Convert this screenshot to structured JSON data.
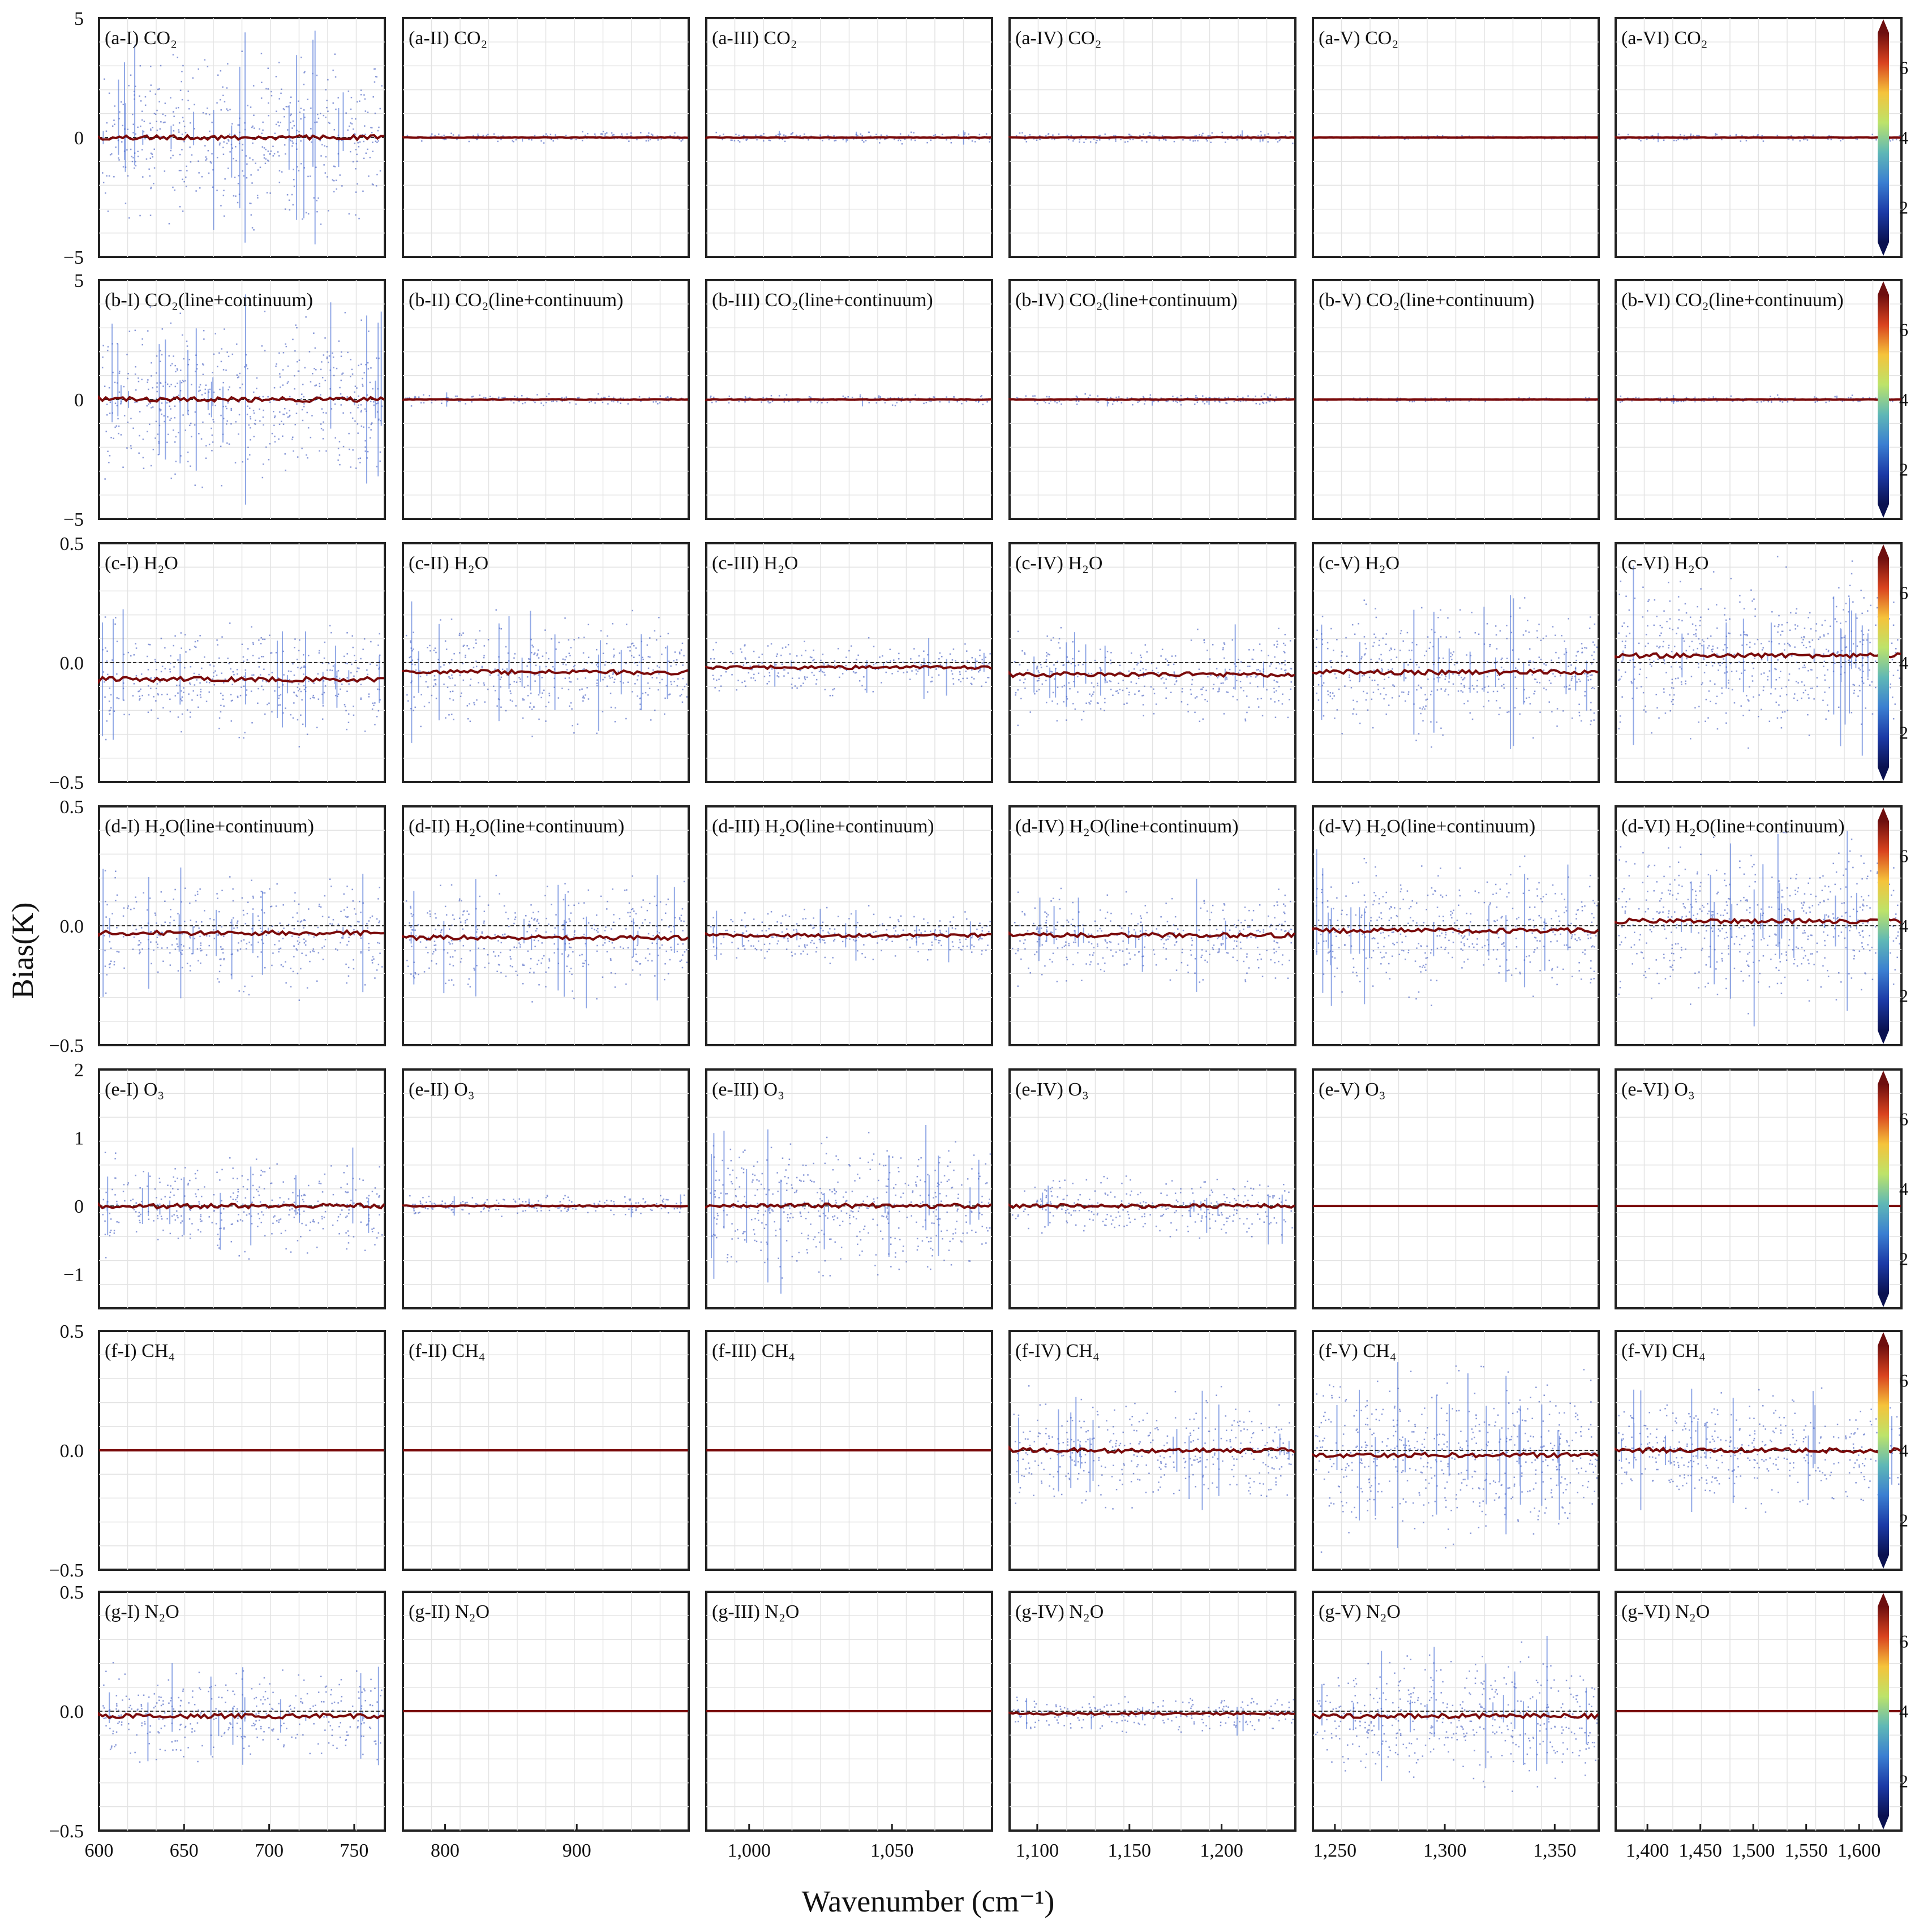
{
  "figure": {
    "ylabel": "Bias(K)",
    "xlabel": "Wavenumber (cm⁻¹)",
    "colorbar_ticks": [
      "2",
      "4",
      "6"
    ]
  },
  "chart_data": {
    "type": "scatter",
    "columns": [
      {
        "id": "I",
        "xlim": [
          600,
          768
        ],
        "ticks": [
          600,
          650,
          700,
          750
        ],
        "tick_labels": [
          "600",
          "650",
          "700",
          "750"
        ]
      },
      {
        "id": "II",
        "xlim": [
          768,
          985
        ],
        "ticks": [
          800,
          900
        ],
        "tick_labels": [
          "800",
          "900"
        ]
      },
      {
        "id": "III",
        "xlim": [
          985,
          1085
        ],
        "ticks": [
          1000,
          1050
        ],
        "tick_labels": [
          "1,000",
          "1,050"
        ]
      },
      {
        "id": "IV",
        "xlim": [
          1085,
          1240
        ],
        "ticks": [
          1100,
          1150,
          1200
        ],
        "tick_labels": [
          "1,100",
          "1,150",
          "1,200"
        ]
      },
      {
        "id": "V",
        "xlim": [
          1240,
          1370
        ],
        "ticks": [
          1250,
          1300,
          1350
        ],
        "tick_labels": [
          "1,250",
          "1,300",
          "1,350"
        ]
      },
      {
        "id": "VI",
        "xlim": [
          1370,
          1640
        ],
        "ticks": [
          1400,
          1450,
          1500,
          1550,
          1600
        ],
        "tick_labels": [
          "1,400",
          "1,450",
          "1,500",
          "1,550",
          "1,600"
        ]
      }
    ],
    "rows": [
      {
        "id": "a",
        "gas": "CO₂",
        "suffix": "",
        "ylim": [
          -5,
          5
        ],
        "yticks": [
          "5",
          "0",
          "−5"
        ],
        "scatter_extent": [
          4.5,
          0.3,
          0.3,
          0.3,
          0.1,
          0.2
        ],
        "bias_line": [
          0,
          0,
          0,
          0,
          0,
          0
        ]
      },
      {
        "id": "b",
        "gas": "CO₂",
        "suffix": "(line+continuum)",
        "ylim": [
          -5,
          5
        ],
        "yticks": [
          "5",
          "0",
          "−5"
        ],
        "scatter_extent": [
          4.5,
          0.3,
          0.3,
          0.3,
          0.1,
          0.2
        ],
        "bias_line": [
          0,
          0,
          0,
          0,
          0,
          0
        ]
      },
      {
        "id": "c",
        "gas": "H₂O",
        "suffix": "",
        "ylim": [
          -0.5,
          0.5
        ],
        "yticks": [
          "0.5",
          "0.0",
          "−0.5"
        ],
        "scatter_extent": [
          0.3,
          0.3,
          0.15,
          0.25,
          0.35,
          0.45
        ],
        "bias_line": [
          -0.07,
          -0.04,
          -0.02,
          -0.05,
          -0.04,
          0.03
        ]
      },
      {
        "id": "d",
        "gas": "H₂O",
        "suffix": "(line+continuum)",
        "ylim": [
          -0.5,
          0.5
        ],
        "yticks": [
          "0.5",
          "0.0",
          "−0.5"
        ],
        "scatter_extent": [
          0.3,
          0.3,
          0.15,
          0.25,
          0.35,
          0.45
        ],
        "bias_line": [
          -0.03,
          -0.05,
          -0.04,
          -0.04,
          -0.02,
          0.02
        ]
      },
      {
        "id": "e",
        "gas": "O₃",
        "suffix": "",
        "ylim": [
          -1.5,
          2
        ],
        "yticks": [
          "2",
          "1",
          "0",
          "−1"
        ],
        "scatter_extent": [
          0.9,
          0.2,
          1.3,
          0.6,
          0,
          0
        ],
        "bias_line": [
          0,
          0,
          0,
          0,
          0,
          0
        ]
      },
      {
        "id": "f",
        "gas": "CH₄",
        "suffix": "",
        "ylim": [
          -0.5,
          0.5
        ],
        "yticks": [
          "0.5",
          "0.0",
          "−0.5"
        ],
        "scatter_extent": [
          0,
          0,
          0,
          0.3,
          0.45,
          0.3
        ],
        "bias_line": [
          0,
          0,
          0,
          0,
          -0.02,
          0
        ]
      },
      {
        "id": "g",
        "gas": "N₂O",
        "suffix": "",
        "ylim": [
          -0.5,
          0.5
        ],
        "yticks": [
          "0.5",
          "0.0",
          "−0.5"
        ],
        "scatter_extent": [
          0.25,
          0,
          0,
          0.1,
          0.35,
          0
        ],
        "bias_line": [
          -0.02,
          0,
          0,
          -0.01,
          -0.02,
          0
        ]
      }
    ],
    "colorbar": {
      "range": [
        1,
        7
      ],
      "ticks": [
        2,
        4,
        6
      ],
      "colormap": [
        "#0a1150",
        "#1c3aa6",
        "#3b7fd1",
        "#5fb8b6",
        "#bde36a",
        "#f5c33b",
        "#d9431f",
        "#6e0f0f"
      ]
    },
    "colors": {
      "scatter": "#2947b8",
      "bias_line": "#7a0a0a",
      "zero_line": "#333333"
    }
  }
}
